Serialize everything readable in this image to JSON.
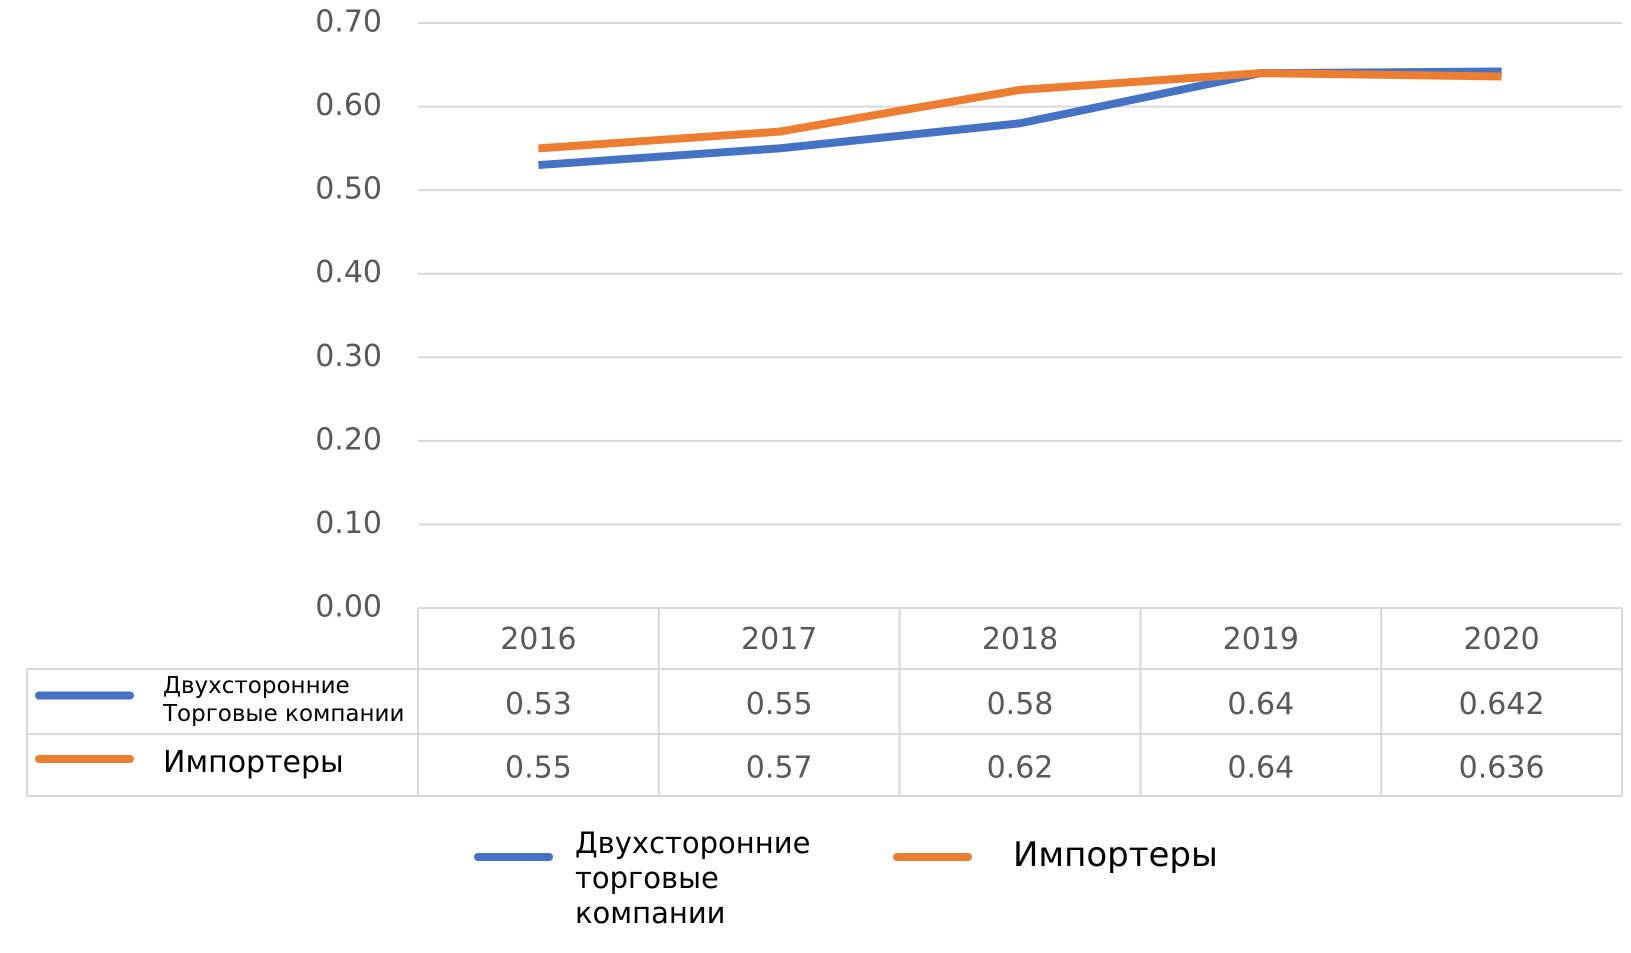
{
  "chart_data": {
    "type": "line",
    "categories": [
      "2016",
      "2017",
      "2018",
      "2019",
      "2020"
    ],
    "series": [
      {
        "name": "Двухсторонние торговые компании",
        "color": "#4472c4",
        "values": [
          0.53,
          0.55,
          0.58,
          0.64,
          0.642
        ]
      },
      {
        "name": "Импортеры",
        "color": "#ed7d31",
        "values": [
          0.55,
          0.57,
          0.62,
          0.64,
          0.636
        ]
      }
    ],
    "table_row_labels": [
      "Двухсторонние Торговые компании",
      "Импортеры"
    ],
    "ylim": [
      0,
      0.7
    ],
    "yticks": [
      {
        "value": 0,
        "label": "0.00"
      },
      {
        "value": 0.1,
        "label": "0.10"
      },
      {
        "value": 0.2,
        "label": "0.20"
      },
      {
        "value": 0.3,
        "label": "0.30"
      },
      {
        "value": 0.4,
        "label": "0.40"
      },
      {
        "value": 0.5,
        "label": "0.50"
      },
      {
        "value": 0.6,
        "label": "0.60"
      },
      {
        "value": 0.7,
        "label": "0.70"
      }
    ],
    "grid": true
  }
}
